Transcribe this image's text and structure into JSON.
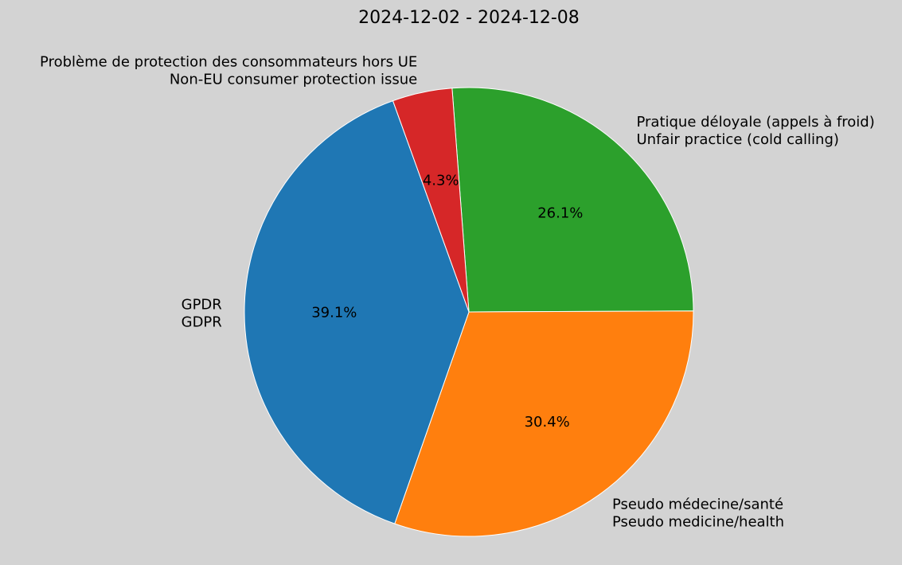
{
  "chart_data": {
    "type": "pie",
    "title": "2024-12-02 - 2024-12-08",
    "slices": [
      {
        "label": [
          "Pratique déloyale (appels à froid)",
          "Unfair practice (cold calling)"
        ],
        "value": 26.1,
        "pct_label": "26.1%",
        "color": "#2ca02c"
      },
      {
        "label": [
          "Pseudo médecine/santé",
          "Pseudo medicine/health"
        ],
        "value": 30.4,
        "pct_label": "30.4%",
        "color": "#ff7f0e"
      },
      {
        "label": [
          "GPDR",
          "GDPR"
        ],
        "value": 39.1,
        "pct_label": "39.1%",
        "color": "#1f77b4"
      },
      {
        "label": [
          "Problème de protection des consommateurs hors UE",
          "Non-EU consumer protection issue"
        ],
        "value": 4.3,
        "pct_label": "4.3%",
        "color": "#d62728"
      }
    ],
    "direction": "clockwise",
    "wedge_edge_color": "#ffffff",
    "background": "#d3d3d3"
  }
}
